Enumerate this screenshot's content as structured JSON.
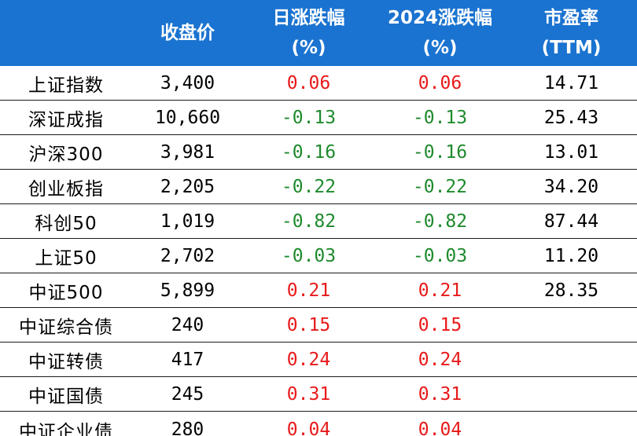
{
  "colors": {
    "header_bg": "#1a73d0",
    "header_text": "#ffffff",
    "positive": "#e8191a",
    "negative": "#1e8a2d",
    "rule": "#1a1a1a"
  },
  "header": {
    "corner": "",
    "close": "收盘价",
    "daily_line1": "日涨跌幅",
    "daily_line2": "(%)",
    "ytd_line1": "2024涨跌幅",
    "ytd_line2": "(%)",
    "pe_line1": "市盈率",
    "pe_line2": "(TTM)"
  },
  "rows": [
    {
      "name": "上证指数",
      "close": "3,400",
      "daily": "0.06",
      "ytd": "0.06",
      "pe": "14.71"
    },
    {
      "name": "深证成指",
      "close": "10,660",
      "daily": "-0.13",
      "ytd": "-0.13",
      "pe": "25.43"
    },
    {
      "name": "沪深300",
      "close": "3,981",
      "daily": "-0.16",
      "ytd": "-0.16",
      "pe": "13.01"
    },
    {
      "name": "创业板指",
      "close": "2,205",
      "daily": "-0.22",
      "ytd": "-0.22",
      "pe": "34.20"
    },
    {
      "name": "科创50",
      "close": "1,019",
      "daily": "-0.82",
      "ytd": "-0.82",
      "pe": "87.44"
    },
    {
      "name": "上证50",
      "close": "2,702",
      "daily": "-0.03",
      "ytd": "-0.03",
      "pe": "11.20"
    },
    {
      "name": "中证500",
      "close": "5,899",
      "daily": "0.21",
      "ytd": "0.21",
      "pe": "28.35"
    },
    {
      "name": "中证综合债",
      "close": "240",
      "daily": "0.15",
      "ytd": "0.15",
      "pe": ""
    },
    {
      "name": "中证转债",
      "close": "417",
      "daily": "0.24",
      "ytd": "0.24",
      "pe": ""
    },
    {
      "name": "中证国债",
      "close": "245",
      "daily": "0.31",
      "ytd": "0.31",
      "pe": ""
    },
    {
      "name": "中证企业债",
      "close": "280",
      "daily": "0.04",
      "ytd": "0.04",
      "pe": ""
    }
  ]
}
